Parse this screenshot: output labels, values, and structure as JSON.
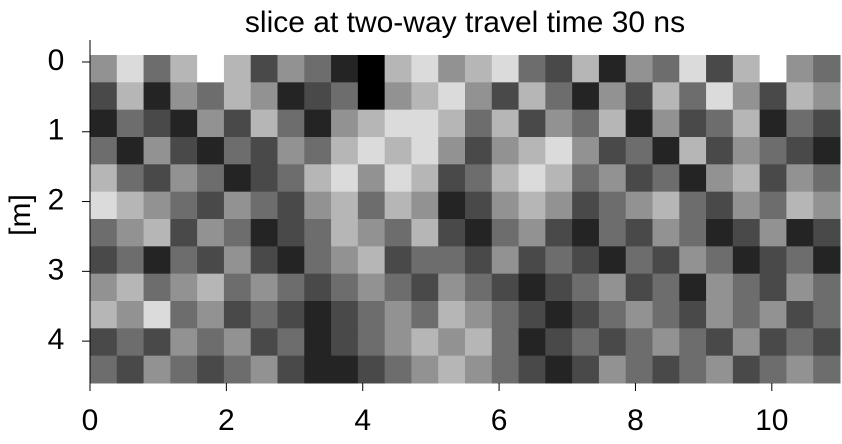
{
  "chart_data": {
    "type": "heatmap",
    "title": "slice at two-way travel time 30 ns",
    "ylabel": "[m]",
    "xlim": [
      0,
      11
    ],
    "ylim": [
      4.6,
      -0.1
    ],
    "xticks": [
      0,
      2,
      4,
      6,
      8,
      10
    ],
    "yticks": [
      0,
      1,
      2,
      3,
      4
    ],
    "colormap": "gray",
    "z": [
      [
        5,
        7,
        4,
        6,
        8,
        6,
        3,
        5,
        4,
        2,
        1,
        6,
        7,
        5,
        6,
        7,
        4,
        3,
        6,
        2,
        5,
        4,
        7,
        3,
        6,
        8,
        5,
        4
      ],
      [
        3,
        6,
        2,
        5,
        4,
        6,
        5,
        2,
        3,
        4,
        1,
        5,
        6,
        7,
        5,
        3,
        6,
        4,
        2,
        5,
        3,
        6,
        4,
        7,
        5,
        3,
        6,
        5
      ],
      [
        2,
        4,
        3,
        2,
        5,
        3,
        6,
        4,
        2,
        5,
        6,
        7,
        7,
        6,
        4,
        6,
        3,
        5,
        4,
        6,
        2,
        5,
        3,
        4,
        6,
        2,
        4,
        3
      ],
      [
        4,
        2,
        5,
        3,
        2,
        4,
        3,
        5,
        4,
        6,
        7,
        6,
        7,
        5,
        3,
        5,
        6,
        7,
        5,
        3,
        4,
        2,
        6,
        3,
        5,
        4,
        3,
        2
      ],
      [
        6,
        4,
        3,
        5,
        4,
        2,
        3,
        4,
        6,
        7,
        5,
        7,
        6,
        3,
        4,
        6,
        7,
        6,
        4,
        5,
        3,
        4,
        2,
        5,
        6,
        3,
        5,
        4
      ],
      [
        7,
        6,
        5,
        4,
        3,
        5,
        4,
        3,
        5,
        6,
        4,
        6,
        5,
        2,
        3,
        5,
        6,
        5,
        3,
        4,
        5,
        6,
        4,
        3,
        5,
        4,
        6,
        5
      ],
      [
        4,
        5,
        6,
        3,
        5,
        4,
        2,
        3,
        4,
        6,
        5,
        4,
        6,
        3,
        2,
        4,
        5,
        3,
        2,
        4,
        3,
        5,
        4,
        2,
        3,
        5,
        2,
        3
      ],
      [
        3,
        4,
        2,
        4,
        3,
        5,
        3,
        2,
        4,
        5,
        6,
        3,
        4,
        4,
        3,
        5,
        3,
        4,
        3,
        2,
        4,
        3,
        5,
        4,
        2,
        3,
        4,
        2
      ],
      [
        5,
        6,
        4,
        5,
        6,
        4,
        5,
        4,
        3,
        4,
        5,
        4,
        3,
        5,
        4,
        3,
        2,
        3,
        4,
        5,
        3,
        4,
        2,
        5,
        4,
        3,
        5,
        4
      ],
      [
        6,
        5,
        7,
        4,
        5,
        3,
        4,
        3,
        2,
        3,
        4,
        5,
        4,
        6,
        5,
        4,
        3,
        2,
        3,
        4,
        5,
        4,
        3,
        5,
        4,
        5,
        3,
        4
      ],
      [
        3,
        4,
        3,
        5,
        4,
        5,
        3,
        4,
        2,
        3,
        4,
        5,
        6,
        5,
        6,
        4,
        2,
        3,
        4,
        3,
        4,
        5,
        4,
        3,
        5,
        3,
        4,
        3
      ],
      [
        4,
        3,
        5,
        4,
        3,
        4,
        5,
        3,
        2,
        2,
        3,
        4,
        5,
        6,
        5,
        4,
        3,
        2,
        3,
        5,
        4,
        3,
        4,
        5,
        3,
        4,
        5,
        4
      ]
    ]
  }
}
